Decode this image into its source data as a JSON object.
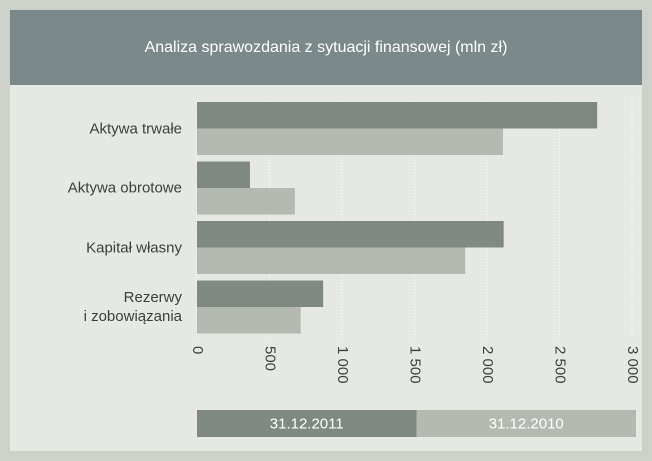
{
  "chart_data": {
    "type": "hbar",
    "title": "Analiza sprawozdania z sytuacji finansowej (mln zł)",
    "categories": [
      "Aktywa trwałe",
      "Aktywa obrotowe",
      "Kapitał własny",
      "Rezerwy\ni zobowiązania"
    ],
    "series": [
      {
        "name": "31.12.2011",
        "color": "#7f8982",
        "values": [
          2760,
          365,
          2115,
          870
        ]
      },
      {
        "name": "31.12.2010",
        "color": "#b4b9b1",
        "values": [
          2110,
          675,
          1850,
          715
        ]
      }
    ],
    "xlim": [
      0,
      3000
    ],
    "xticks": [
      0,
      500,
      {
        "value": 1000,
        "label": "1 000"
      },
      {
        "value": 1500,
        "label": "1 500"
      },
      {
        "value": 2000,
        "label": "2 000"
      },
      {
        "value": 2500,
        "label": "2 500"
      },
      {
        "value": 3000,
        "label": "3 000"
      }
    ],
    "grid": true
  }
}
